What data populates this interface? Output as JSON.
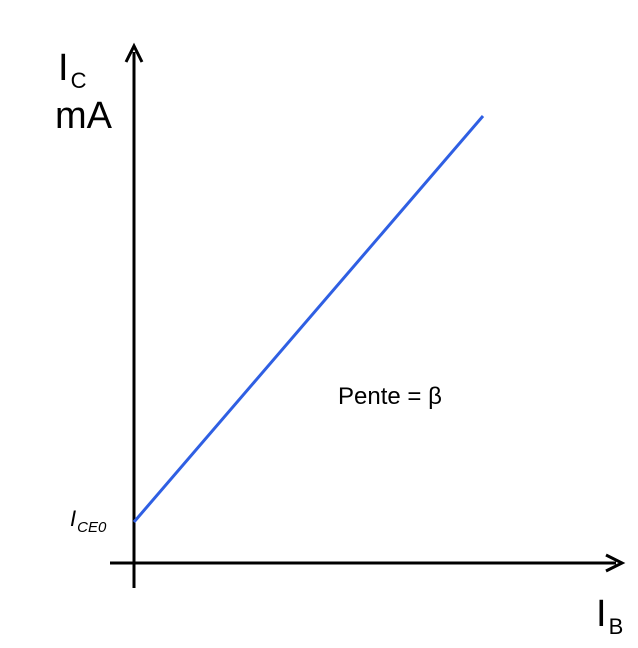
{
  "chart_data": {
    "type": "line",
    "y_axis": {
      "letter": "I",
      "subscript": "C",
      "unit": "mA"
    },
    "x_axis": {
      "letter": "I",
      "subscript": "B"
    },
    "y_tick": {
      "letter": "I",
      "subscript": "CE0"
    },
    "annotation": "Pente = β",
    "series": [
      {
        "color": "#2f5fe3",
        "x": [
          0,
          1
        ],
        "y": [
          0,
          1
        ]
      }
    ]
  }
}
